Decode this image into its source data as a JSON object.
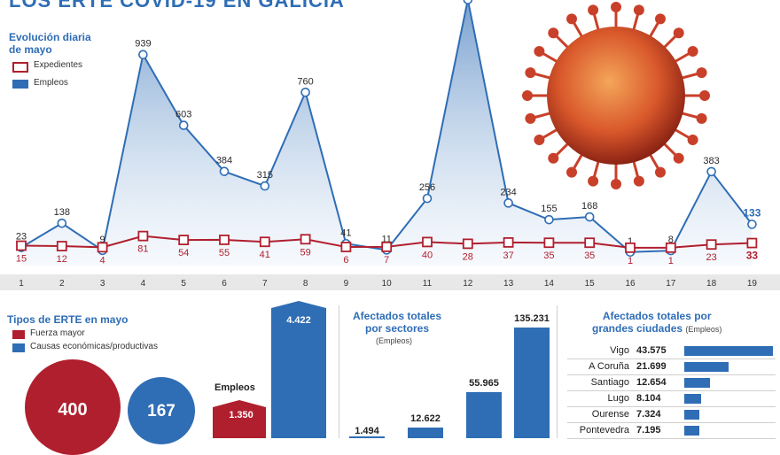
{
  "header": {
    "title": "LOS ERTE COVID-19 EN GALICIA"
  },
  "line_chart": {
    "title_line1": "Evolución diaria",
    "title_line2": "de mayo",
    "legend_expedientes": "Expedientes",
    "legend_empleos": "Empleos"
  },
  "erte_types": {
    "title": "Tipos de ERTE en mayo",
    "legend_fuerza": "Fuerza mayor",
    "legend_causas": "Causas económicas/productivas",
    "circle_fuerza_value": "400",
    "circle_causas_value": "167",
    "empleos_label": "Empleos",
    "bar_fuerza_value": "1.350",
    "bar_causas_value": "4.422"
  },
  "sectors": {
    "title_line1": "Afectados totales",
    "title_line2": "por sectores",
    "subtitle": "(Empleos)",
    "values": [
      "1.494",
      "12.622",
      "55.965",
      "135.231"
    ]
  },
  "cities": {
    "title_line1": "Afectados totales por",
    "title_line2": "grandes ciudades",
    "subtitle": "(Empleos)",
    "rows": [
      {
        "name": "Vigo",
        "value": "43.575",
        "num": 43575
      },
      {
        "name": "A Coruña",
        "value": "21.699",
        "num": 21699
      },
      {
        "name": "Santiago",
        "value": "12.654",
        "num": 12654
      },
      {
        "name": "Lugo",
        "value": "8.104",
        "num": 8104
      },
      {
        "name": "Ourense",
        "value": "7.324",
        "num": 7324
      },
      {
        "name": "Pontevedra",
        "value": "7.195",
        "num": 7195
      }
    ]
  },
  "colors": {
    "blue": "#2f6db5",
    "red": "#b01f2e",
    "accent": "#2f6db5"
  },
  "chart_data": [
    {
      "type": "line",
      "title": "Evolución diaria de mayo",
      "x": [
        "1",
        "2",
        "3",
        "4",
        "5",
        "6",
        "7",
        "8",
        "9",
        "10",
        "11",
        "12",
        "13",
        "14",
        "15",
        "16",
        "17",
        "18",
        "19"
      ],
      "series": [
        {
          "name": "Empleos",
          "values": [
            23,
            138,
            9,
            939,
            603,
            384,
            315,
            760,
            41,
            11,
            256,
            1200,
            234,
            155,
            168,
            1,
            8,
            383,
            133
          ],
          "labels": [
            "23",
            "138",
            "9",
            "939",
            "603",
            "384",
            "315",
            "760",
            "41",
            "11",
            "256",
            "",
            "234",
            "155",
            "168",
            "1",
            "8",
            "383",
            "133"
          ]
        },
        {
          "name": "Expedientes",
          "values": [
            15,
            12,
            4,
            81,
            54,
            55,
            41,
            59,
            6,
            7,
            40,
            28,
            37,
            35,
            35,
            1,
            1,
            23,
            33
          ]
        }
      ]
    },
    {
      "type": "bar",
      "title": "Tipos de ERTE en mayo",
      "ylabel": "Empleos",
      "categories": [
        "Fuerza mayor",
        "Causas económicas/productivas"
      ],
      "values": [
        1350,
        4422
      ]
    },
    {
      "type": "bar",
      "title": "Afectados totales por sectores",
      "subtitle": "(Empleos)",
      "values": [
        1494,
        12622,
        55965,
        135231
      ]
    },
    {
      "type": "bar",
      "title": "Afectados totales por grandes ciudades",
      "subtitle": "(Empleos)",
      "categories": [
        "Vigo",
        "A Coruña",
        "Santiago",
        "Lugo",
        "Ourense",
        "Pontevedra"
      ],
      "values": [
        43575,
        21699,
        12654,
        8104,
        7324,
        7195
      ]
    }
  ]
}
